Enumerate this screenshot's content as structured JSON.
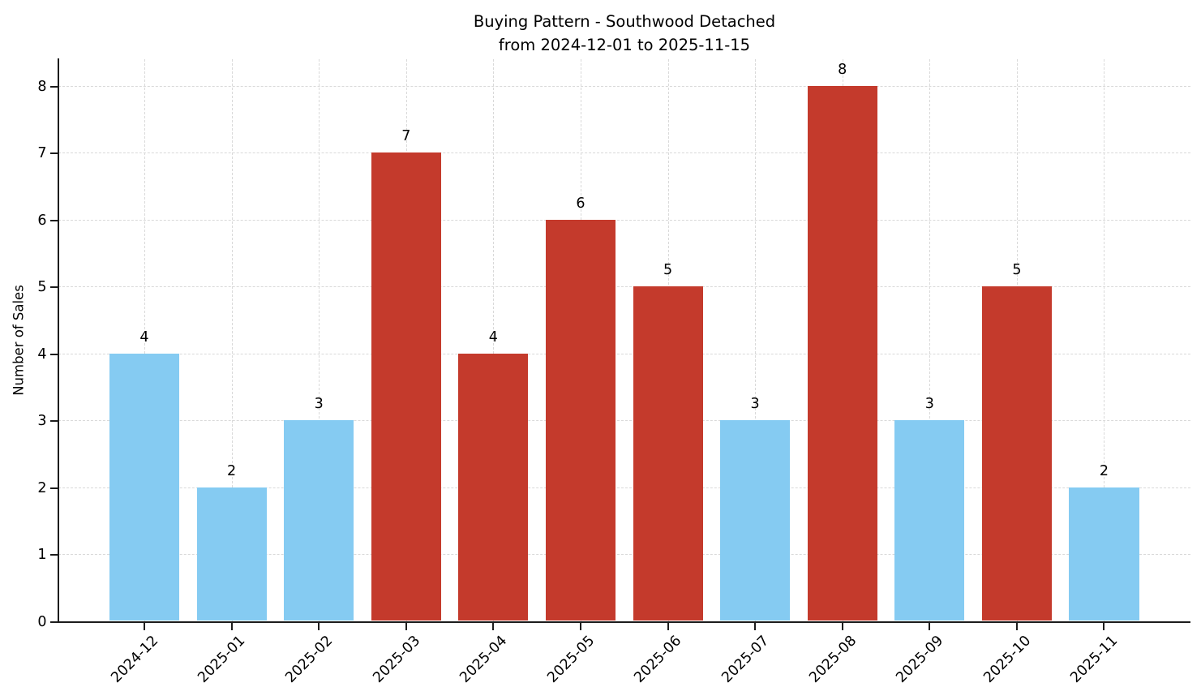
{
  "chart_data": {
    "type": "bar",
    "title": "Buying Pattern - Southwood Detached\nfrom 2024-12-01 to 2025-11-15",
    "title_line1": "Buying Pattern - Southwood Detached",
    "title_line2": "from 2024-12-01 to 2025-11-15",
    "xlabel": "",
    "ylabel": "Number of Sales",
    "categories": [
      "2024-12",
      "2025-01",
      "2025-02",
      "2025-03",
      "2025-04",
      "2025-05",
      "2025-06",
      "2025-07",
      "2025-08",
      "2025-09",
      "2025-10",
      "2025-11"
    ],
    "values": [
      4,
      2,
      3,
      7,
      4,
      6,
      5,
      3,
      8,
      3,
      5,
      2
    ],
    "value_labels": [
      "4",
      "2",
      "3",
      "7",
      "4",
      "6",
      "5",
      "3",
      "8",
      "3",
      "5",
      "2"
    ],
    "bar_colors": [
      "#85CBF2",
      "#85CBF2",
      "#85CBF2",
      "#C43A2C",
      "#C43A2C",
      "#C43A2C",
      "#C43A2C",
      "#85CBF2",
      "#C43A2C",
      "#85CBF2",
      "#C43A2C",
      "#85CBF2"
    ],
    "color_legend": {
      "low_season_blue": "#85CBF2",
      "high_season_red": "#C43A2C"
    },
    "yticks": [
      0,
      1,
      2,
      3,
      4,
      5,
      6,
      7,
      8
    ],
    "ylim": [
      0,
      8.4
    ],
    "grid": "dashed-both-axes",
    "legend_position": "none",
    "x_tick_rotation_deg": 45
  }
}
